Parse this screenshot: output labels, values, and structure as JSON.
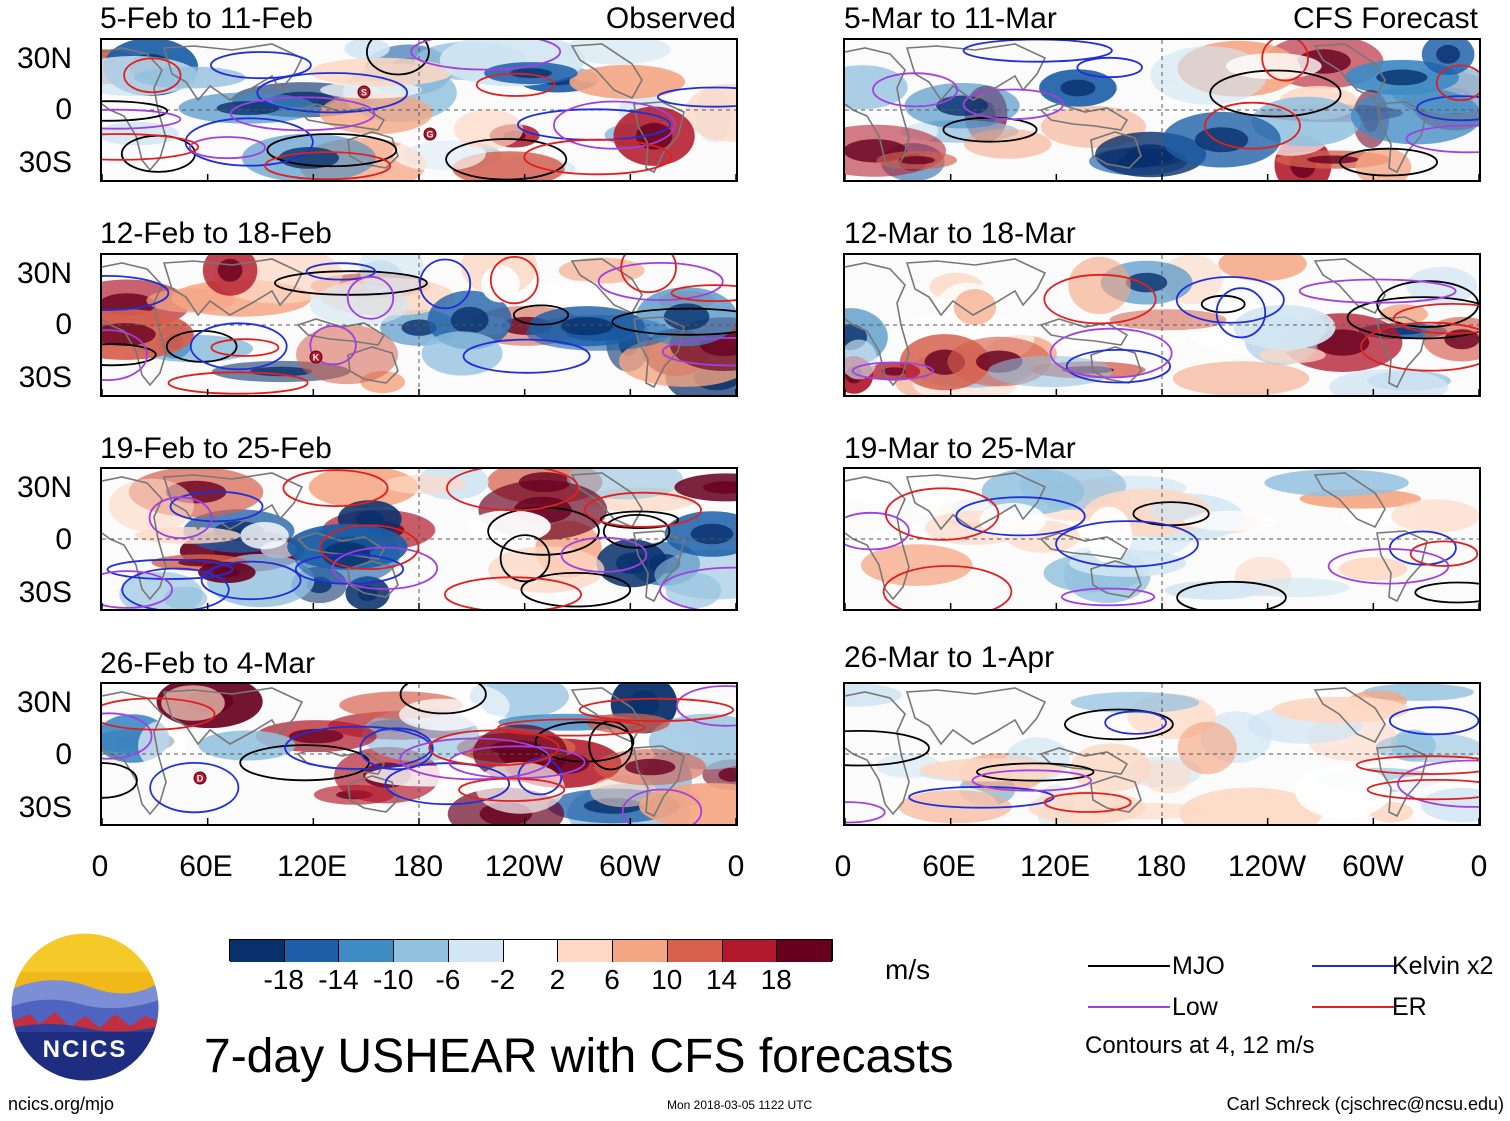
{
  "colors": {
    "mjo": "#000000",
    "kelvin": "#1f2fd8",
    "low": "#a040e0",
    "er": "#e02020"
  },
  "panels_left": [
    {
      "title": "5-Feb to 11-Feb",
      "tag": "Observed"
    },
    {
      "title": "12-Feb to 18-Feb",
      "tag": ""
    },
    {
      "title": "19-Feb to 25-Feb",
      "tag": ""
    },
    {
      "title": "26-Feb to 4-Mar",
      "tag": ""
    }
  ],
  "panels_right": [
    {
      "title": "5-Mar to 11-Mar",
      "tag": "CFS Forecast"
    },
    {
      "title": "12-Mar to 18-Mar",
      "tag": ""
    },
    {
      "title": "19-Mar to 25-Mar",
      "tag": ""
    },
    {
      "title": "26-Mar to 1-Apr",
      "tag": ""
    }
  ],
  "lat_labels": [
    "30N",
    "0",
    "30S"
  ],
  "lon_labels": [
    "0",
    "60E",
    "120E",
    "180",
    "120W",
    "60W",
    "0"
  ],
  "storm_markers": [
    {
      "panel": 0,
      "letter": "S"
    },
    {
      "panel": 0,
      "letter": "G"
    },
    {
      "panel": 1,
      "letter": "K"
    },
    {
      "panel": 3,
      "letter": "D"
    }
  ],
  "colorbar": {
    "unit": "m/s",
    "labels": [
      "-18",
      "-14",
      "-10",
      "-6",
      "-2",
      "2",
      "6",
      "10",
      "14",
      "18"
    ],
    "colors": [
      "#08306b",
      "#1c5fa8",
      "#3f8bc4",
      "#92c1df",
      "#d2e6f3",
      "#ffffff",
      "#fdd8c4",
      "#f4a582",
      "#d6604d",
      "#b2182b",
      "#67001f"
    ]
  },
  "legend": {
    "mjo": "MJO",
    "kelvin": "Kelvin x2",
    "low": "Low",
    "er": "ER",
    "contours_note": "Contours at 4, 12 m/s"
  },
  "logo": {
    "text": "NCICS"
  },
  "main_title": "7-day USHEAR with CFS forecasts",
  "footer": {
    "url": "ncics.org/mjo",
    "timestamp": "Mon 2018-03-05 1122 UTC",
    "author": "Carl Schreck (cjschrec@ncsu.edu)"
  }
}
